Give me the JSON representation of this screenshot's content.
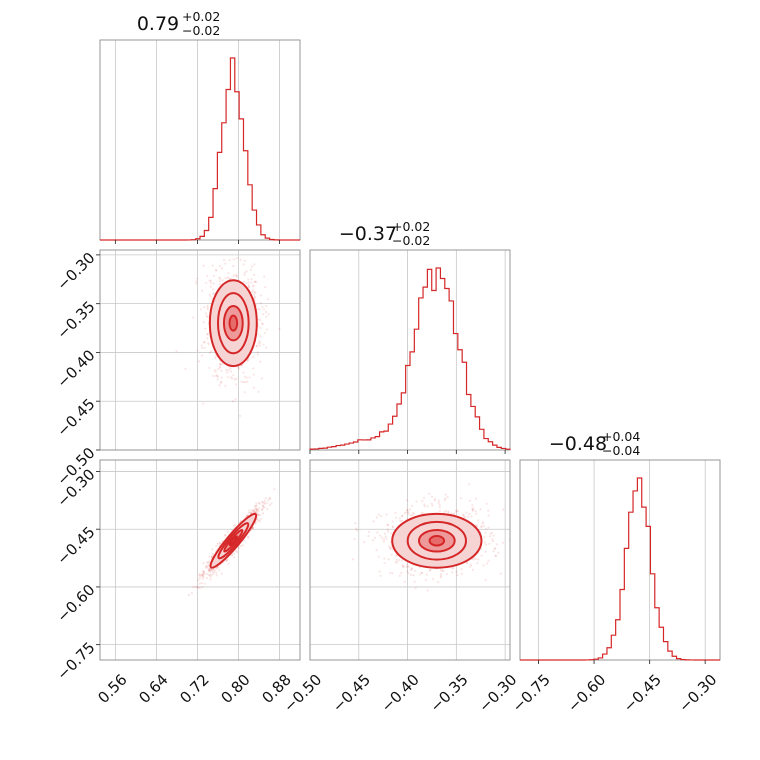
{
  "chart_data": {
    "type": "corner",
    "parameters": [
      {
        "title": {
          "median": "0.79",
          "plus": "+0.02",
          "minus": "−0.02"
        },
        "ticks": [
          "0.56",
          "0.64",
          "0.72",
          "0.80",
          "0.88"
        ],
        "tick_values": [
          0.56,
          0.64,
          0.72,
          0.8,
          0.88
        ],
        "range": [
          0.53,
          0.92
        ],
        "median": 0.79,
        "sigma": 0.022
      },
      {
        "title": {
          "median": "−0.37",
          "plus": "+0.02",
          "minus": "−0.02"
        },
        "ticks": [
          "−0.30",
          "−0.35",
          "−0.40",
          "−0.45",
          "−0.50"
        ],
        "tick_values": [
          -0.3,
          -0.35,
          -0.4,
          -0.45,
          -0.5
        ],
        "range": [
          -0.5,
          -0.295
        ],
        "median": -0.37,
        "sigma": 0.022
      },
      {
        "title": {
          "median": "−0.48",
          "plus": "+0.04",
          "minus": "−0.04"
        },
        "ticks": [
          "−0.75",
          "−0.60",
          "−0.45",
          "−0.30"
        ],
        "tick_values": [
          -0.75,
          -0.6,
          -0.45,
          -0.3
        ],
        "range": [
          -0.8,
          -0.26
        ],
        "median": -0.48,
        "sigma": 0.035
      }
    ],
    "panel_ylim_ticks": {
      "row1_y": [
        "−0.30",
        "−0.35",
        "−0.40",
        "−0.45",
        "−0.50"
      ],
      "row2_y": [
        "−0.30",
        "−0.45",
        "−0.60",
        "−0.75"
      ]
    },
    "correlation": {
      "p0_p1": 0.05,
      "p0_p2": 0.95,
      "p1_p2": 0.05
    },
    "color": "#d62728",
    "grid": true
  }
}
